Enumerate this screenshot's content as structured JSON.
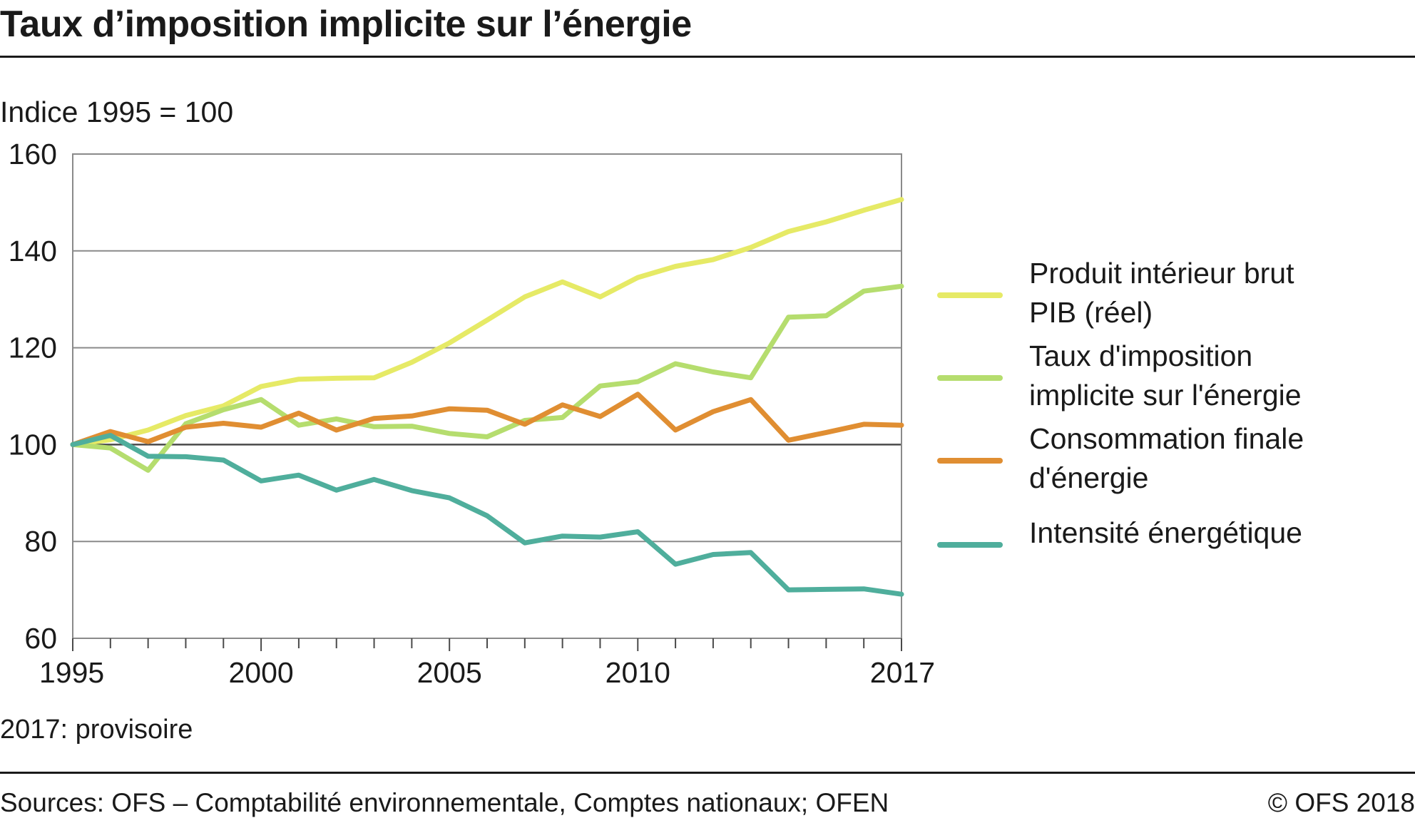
{
  "title": "Taux d’imposition implicite sur l’énergie",
  "subtitle": "Indice 1995 = 100",
  "note": "2017: provisoire",
  "sources": "Sources: OFS – Comptabilité environnementale, Comptes nationaux; OFEN",
  "copyright": "© OFS  2018",
  "chart_data": {
    "type": "line",
    "x": [
      1995,
      1996,
      1997,
      1998,
      1999,
      2000,
      2001,
      2002,
      2003,
      2004,
      2005,
      2006,
      2007,
      2008,
      2009,
      2010,
      2011,
      2012,
      2013,
      2014,
      2015,
      2016,
      2017
    ],
    "x_tick_labels": [
      "1995",
      "2000",
      "2005",
      "2010",
      "2017"
    ],
    "x_tick_values": [
      1995,
      2000,
      2005,
      2010,
      2017
    ],
    "ylim": [
      60,
      160
    ],
    "y_ticks": [
      60,
      80,
      100,
      120,
      140,
      160
    ],
    "grid": true,
    "reference_line": 100,
    "legend_position": "right",
    "series": [
      {
        "name_lines": [
          "Produit intérieur brut",
          "PIB (réel)"
        ],
        "color": "#e6ea66",
        "values": [
          100,
          101,
          103,
          106,
          108,
          112,
          113.5,
          113.7,
          113.8,
          117,
          121,
          125.7,
          130.5,
          133.6,
          130.5,
          134.5,
          136.8,
          138.2,
          140.7,
          144,
          146,
          148.4,
          150.6
        ]
      },
      {
        "name_lines": [
          "Taux d'imposition",
          "implicite sur l'énergie"
        ],
        "color": "#b5dd6e",
        "values": [
          100,
          99.3,
          94.7,
          104.3,
          107.2,
          109.3,
          104,
          105.3,
          103.7,
          103.8,
          102.3,
          101.6,
          105,
          105.6,
          112.1,
          113,
          116.7,
          115,
          113.8,
          126.3,
          126.6,
          131.7,
          132.7
        ]
      },
      {
        "name_lines": [
          "Consommation finale",
          "d'énergie"
        ],
        "color": "#e08e32",
        "values": [
          100,
          102.7,
          100.6,
          103.6,
          104.4,
          103.6,
          106.5,
          103,
          105.4,
          105.9,
          107.4,
          107.1,
          104.2,
          108.2,
          105.8,
          110.4,
          103,
          106.8,
          109.3,
          100.9,
          102.5,
          104.2,
          104
        ]
      },
      {
        "name_lines": [
          "Intensité énergétique"
        ],
        "color": "#4fae9c",
        "values": [
          100,
          101.9,
          97.6,
          97.5,
          96.8,
          92.5,
          93.7,
          90.6,
          92.8,
          90.5,
          89,
          85.3,
          79.7,
          81.1,
          80.9,
          82,
          75.3,
          77.3,
          77.7,
          70,
          70.1,
          70.2,
          69.1
        ]
      }
    ]
  }
}
